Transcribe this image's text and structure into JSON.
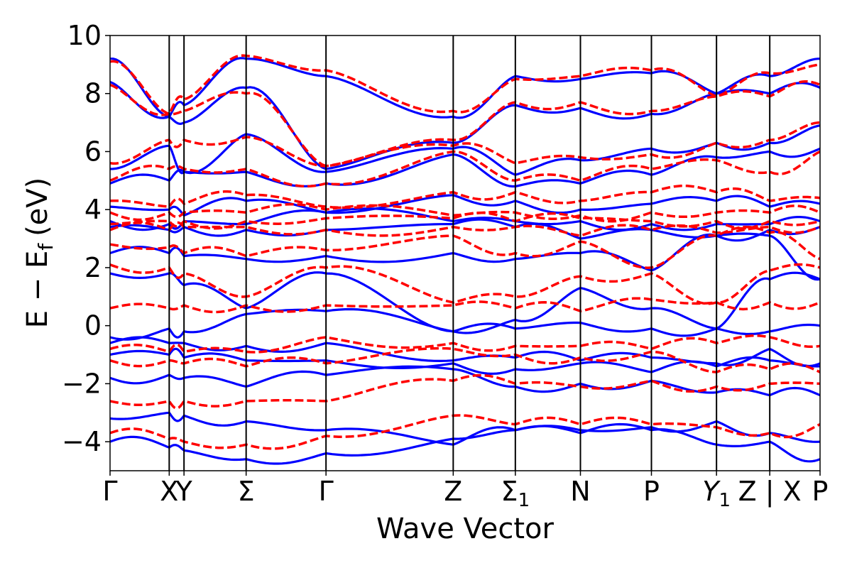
{
  "chart_data": {
    "type": "line",
    "title": "",
    "xlabel": "Wave Vector",
    "ylabel": "E − E",
    "ylabel_sub": "f",
    "ylabel_unit": "(eV)",
    "ylim": [
      -5,
      10
    ],
    "yticks": [
      -4,
      -2,
      0,
      2,
      4,
      6,
      8,
      10
    ],
    "ytick_labels": [
      "−4",
      "−2",
      "0",
      "2",
      "4",
      "6",
      "8",
      "10"
    ],
    "xlim": [
      0,
      12
    ],
    "grid": false,
    "legend": "none",
    "high_symmetry_points": [
      {
        "x": 0.0,
        "label": "Γ"
      },
      {
        "x": 1.0,
        "label": "X"
      },
      {
        "x": 1.25,
        "label": "Y"
      },
      {
        "x": 2.3,
        "label": "Σ"
      },
      {
        "x": 3.65,
        "label": "Γ"
      },
      {
        "x": 5.8,
        "label": "Z"
      },
      {
        "x": 6.85,
        "label": "Σ",
        "sub": "1"
      },
      {
        "x": 7.95,
        "label": "N"
      },
      {
        "x": 9.15,
        "label": "P"
      },
      {
        "x": 10.25,
        "label": "Y",
        "sub": "1",
        "italic": true
      },
      {
        "x": 11.15,
        "label": "Z | X"
      },
      {
        "x": 12.0,
        "label": "P"
      }
    ],
    "segments": [
      [
        0,
        1
      ],
      [
        1,
        1.25
      ],
      [
        1.25,
        2.3
      ],
      [
        2.3,
        3.65
      ],
      [
        3.65,
        5.8
      ],
      [
        5.8,
        6.85
      ],
      [
        6.85,
        7.95
      ],
      [
        7.95,
        9.15
      ],
      [
        9.15,
        10.25
      ],
      [
        10.25,
        11.15
      ],
      [
        11.15,
        12.0
      ]
    ],
    "series": [
      {
        "style": "solid",
        "color": "#0000ff",
        "bands": [
          [
            -4.0,
            -4.2,
            -4.3,
            -4.6,
            -4.4,
            -3.9,
            -3.6,
            -3.7,
            -3.6,
            -4.1,
            -4.0,
            -4.6
          ],
          [
            -3.2,
            -3.0,
            -3.1,
            -3.3,
            -3.6,
            -4.1,
            -3.6,
            -3.6,
            -3.5,
            -3.3,
            -3.7,
            -4.0
          ],
          [
            -1.8,
            -1.7,
            -1.8,
            -2.1,
            -1.7,
            -1.5,
            -2.1,
            -2.0,
            -1.9,
            -2.3,
            -2.4,
            -2.4
          ],
          [
            -1.0,
            -1.0,
            -1.1,
            -1.2,
            -1.2,
            -1.3,
            -1.5,
            -1.3,
            -1.6,
            -1.4,
            -1.2,
            -1.4
          ],
          [
            -0.6,
            -0.6,
            -0.6,
            -0.7,
            -0.6,
            -1.2,
            -1.1,
            -1.2,
            -1.1,
            -1.3,
            -0.8,
            -1.3
          ],
          [
            -0.4,
            -0.1,
            -0.2,
            0.4,
            0.5,
            -0.2,
            -0.1,
            0.1,
            -0.1,
            -0.1,
            -0.2,
            0.0
          ],
          [
            1.8,
            1.8,
            1.4,
            0.6,
            1.8,
            -0.2,
            0.2,
            1.3,
            0.6,
            -0.1,
            1.6,
            1.6
          ],
          [
            2.5,
            2.5,
            2.4,
            2.3,
            2.4,
            2.5,
            2.3,
            2.5,
            1.9,
            3.1,
            3.1,
            1.6
          ],
          [
            3.4,
            3.3,
            3.4,
            3.3,
            3.3,
            3.5,
            3.4,
            3.0,
            3.3,
            3.1,
            3.3,
            3.4
          ],
          [
            3.6,
            3.5,
            3.6,
            3.5,
            3.9,
            3.6,
            3.6,
            3.6,
            3.5,
            3.5,
            3.5,
            3.6
          ],
          [
            4.1,
            4.0,
            3.8,
            4.3,
            3.9,
            4.5,
            4.3,
            4.0,
            4.2,
            4.3,
            4.1,
            4.2
          ],
          [
            4.9,
            5.0,
            5.3,
            5.3,
            4.9,
            5.9,
            4.8,
            4.9,
            5.2,
            5.8,
            6.0,
            6.1
          ],
          [
            5.4,
            6.2,
            5.3,
            6.6,
            5.3,
            6.1,
            5.2,
            5.7,
            6.1,
            6.3,
            6.3,
            6.9
          ],
          [
            8.4,
            7.2,
            7.0,
            8.2,
            5.4,
            6.3,
            7.6,
            7.5,
            7.3,
            8.0,
            8.0,
            8.2
          ],
          [
            9.2,
            7.2,
            7.6,
            9.2,
            8.6,
            7.2,
            8.6,
            8.5,
            8.7,
            8.0,
            8.6,
            9.2
          ]
        ]
      },
      {
        "style": "dashed",
        "color": "#ff0000",
        "bands": [
          [
            -3.7,
            -3.9,
            -4.0,
            -4.1,
            -3.8,
            -3.1,
            -3.4,
            -3.4,
            -3.4,
            -3.5,
            -3.7,
            -3.4
          ],
          [
            -2.6,
            -2.6,
            -2.6,
            -2.6,
            -2.6,
            -1.9,
            -2.0,
            -2.1,
            -1.9,
            -2.1,
            -2.0,
            -2.0
          ],
          [
            -1.2,
            -1.2,
            -1.3,
            -1.4,
            -1.3,
            -0.8,
            -1.0,
            -1.1,
            -0.9,
            -1.6,
            -1.5,
            -1.6
          ],
          [
            -0.8,
            -0.9,
            -0.9,
            -0.9,
            -0.4,
            -0.6,
            -0.7,
            -0.7,
            -0.8,
            -0.6,
            -0.4,
            -0.7
          ],
          [
            0.6,
            0.6,
            0.7,
            0.7,
            0.7,
            0.7,
            0.6,
            0.5,
            0.9,
            0.8,
            0.8,
            0.8
          ],
          [
            2.1,
            2.0,
            1.8,
            1.0,
            2.0,
            0.8,
            1.0,
            1.7,
            1.8,
            0.8,
            1.9,
            2.0
          ],
          [
            2.8,
            2.7,
            2.5,
            2.4,
            2.6,
            3.1,
            2.5,
            2.9,
            2.0,
            3.1,
            3.2,
            2.3
          ],
          [
            3.3,
            3.3,
            3.4,
            3.4,
            3.3,
            3.4,
            3.4,
            3.1,
            3.3,
            3.2,
            3.4,
            3.4
          ],
          [
            3.5,
            3.6,
            3.6,
            3.6,
            3.7,
            3.7,
            3.6,
            3.7,
            3.6,
            3.6,
            3.6,
            3.6
          ],
          [
            3.9,
            3.9,
            3.9,
            3.9,
            4.0,
            3.8,
            3.9,
            3.8,
            3.9,
            3.9,
            3.9,
            3.9
          ],
          [
            4.3,
            4.1,
            4.2,
            4.5,
            4.1,
            4.6,
            4.6,
            4.3,
            4.6,
            4.6,
            4.3,
            4.4
          ],
          [
            5.0,
            5.4,
            5.4,
            5.4,
            4.9,
            6.0,
            5.0,
            5.0,
            5.4,
            5.7,
            5.3,
            6.0
          ],
          [
            5.6,
            6.4,
            6.4,
            6.5,
            5.5,
            6.2,
            5.6,
            5.8,
            5.9,
            6.3,
            6.4,
            7.0
          ],
          [
            8.3,
            7.3,
            7.4,
            8.0,
            5.5,
            6.4,
            7.7,
            7.7,
            7.4,
            7.9,
            7.9,
            8.3
          ],
          [
            9.1,
            7.3,
            7.8,
            9.3,
            8.8,
            7.4,
            8.5,
            8.6,
            8.8,
            7.9,
            8.7,
            9.0
          ]
        ]
      }
    ]
  }
}
